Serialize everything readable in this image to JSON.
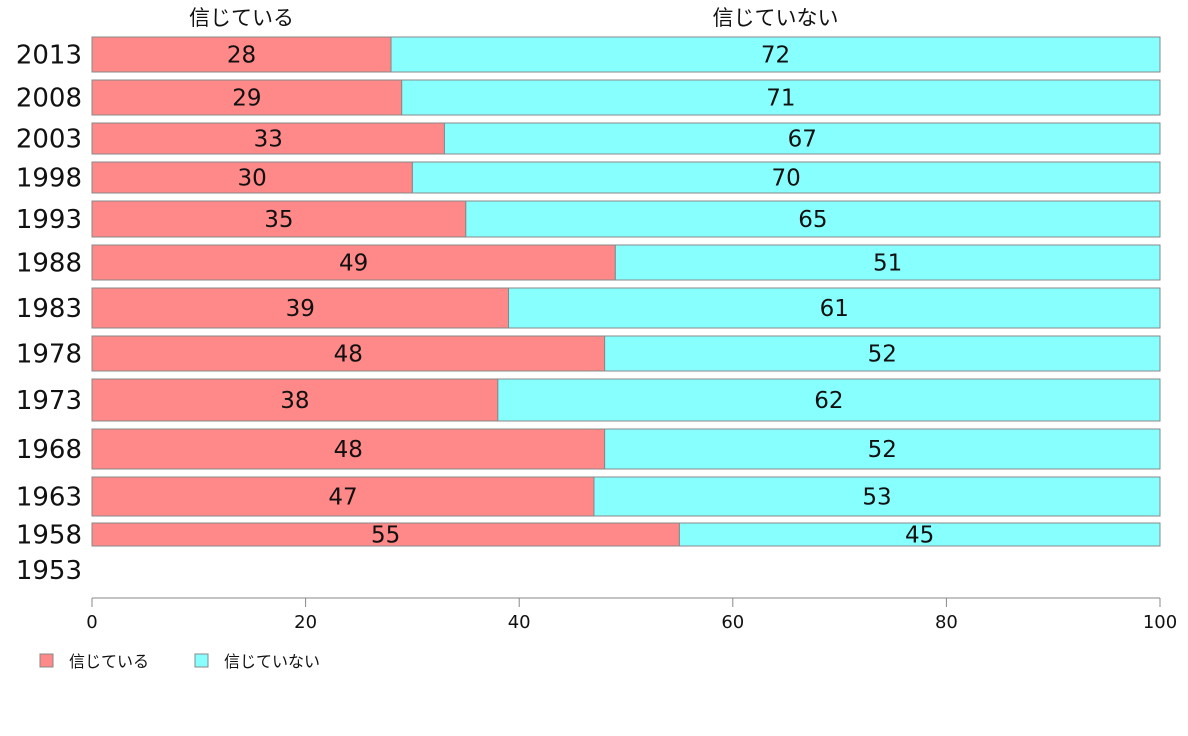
{
  "chart_data": {
    "type": "bar",
    "orientation": "horizontal",
    "stacked": true,
    "categories": [
      "2013",
      "2008",
      "2003",
      "1998",
      "1993",
      "1988",
      "1983",
      "1978",
      "1973",
      "1968",
      "1963",
      "1958",
      "1953"
    ],
    "series": [
      {
        "name": "信じている",
        "values": [
          28,
          29,
          33,
          30,
          35,
          49,
          39,
          48,
          38,
          48,
          47,
          55,
          null
        ]
      },
      {
        "name": "信じていない",
        "values": [
          72,
          71,
          67,
          70,
          65,
          51,
          61,
          52,
          62,
          52,
          53,
          45,
          null
        ]
      }
    ],
    "header_labels": [
      "信じている",
      "信じていない"
    ],
    "xlim": [
      0,
      100
    ],
    "xticks": [
      0,
      20,
      40,
      60,
      80,
      100
    ],
    "grid": false,
    "legend": "bottom-left",
    "colors": [
      "#ff8888",
      "#88ffff"
    ]
  }
}
